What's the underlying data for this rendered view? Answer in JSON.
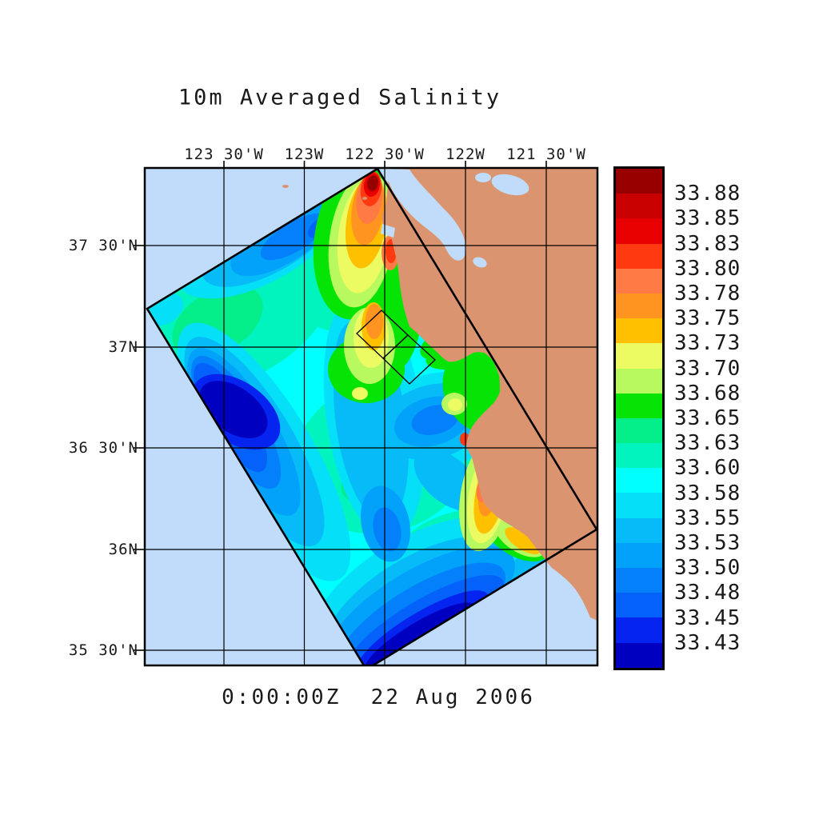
{
  "figure": {
    "title": "10m Averaged Salinity",
    "timestamp": "0:00:00Z  22 Aug 2006"
  },
  "colors": {
    "background": "#FFFFFF",
    "land": "#DB9470",
    "ocean_background": "#C0DCFA",
    "bay_water": "#C0DCFA",
    "outline": "#000000"
  },
  "axes": {
    "top_longitude_labels": [
      "123 30'W",
      "123W",
      "122 30'W",
      "122W",
      "121 30'W"
    ],
    "left_latitude_labels": [
      "37 30'N",
      "37N",
      "36 30'N",
      "36N",
      "35 30'N"
    ]
  },
  "colorbar": {
    "labels_top_to_bottom": [
      "33.88",
      "33.85",
      "33.83",
      "33.80",
      "33.78",
      "33.75",
      "33.73",
      "33.70",
      "33.68",
      "33.65",
      "33.63",
      "33.60",
      "33.58",
      "33.55",
      "33.53",
      "33.50",
      "33.48",
      "33.45",
      "33.43"
    ],
    "colors_top_to_bottom": [
      "#980000",
      "#C80000",
      "#E80000",
      "#FF3A10",
      "#FF7A44",
      "#FF9420",
      "#FFC000",
      "#EDFB62",
      "#B7F95F",
      "#06E406",
      "#04EE89",
      "#02F4BE",
      "#00FFFF",
      "#05DFF7",
      "#06BBF7",
      "#02A2FA",
      "#0380FA",
      "#0461FA",
      "#0524F0",
      "#0000C0"
    ]
  },
  "chart_data": {
    "type": "heatmap",
    "title": "10m Averaged Salinity",
    "timestamp_label": "0:00:00Z  22 Aug 2006",
    "x_tick_labels": [
      "123 30'W",
      "123W",
      "122 30'W",
      "122W",
      "121 30'W"
    ],
    "y_tick_labels": [
      "37 30'N",
      "37N",
      "36 30'N",
      "36N",
      "35 30'N"
    ],
    "colorbar_levels_low_to_high": [
      33.43,
      33.45,
      33.48,
      33.5,
      33.53,
      33.55,
      33.58,
      33.6,
      33.63,
      33.65,
      33.68,
      33.7,
      33.73,
      33.75,
      33.78,
      33.8,
      33.83,
      33.85,
      33.88
    ],
    "colorbar_colors_low_to_high": [
      "#0000C0",
      "#0524F0",
      "#0461FA",
      "#0380FA",
      "#02A2FA",
      "#06BBF7",
      "#05DFF7",
      "#00FFFF",
      "#02F4BE",
      "#04EE89",
      "#06E406",
      "#B7F95F",
      "#EDFB62",
      "#FFC000",
      "#FF9420",
      "#FF7A44",
      "#FF3A10",
      "#E80000",
      "#C80000",
      "#980000"
    ],
    "legend_position": "right",
    "grid": true,
    "visible_features": [
      "rotated rectangular model domain filled with banded salinity field",
      "high-salinity (red/orange) plume near San Francisco Bay mouth",
      "high-salinity strip along Big Sur coast",
      "low-salinity (dark blue) pools on southwest side and along bottom edge of domain",
      "two small rotated sub-domain boxes offshore",
      "tan land mass with San Francisco Bay in pale blue"
    ]
  }
}
